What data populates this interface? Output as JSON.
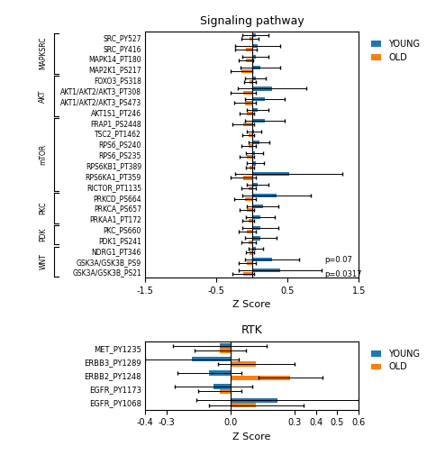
{
  "chart_data": [
    {
      "type": "bar",
      "orientation": "horizontal",
      "title": "Signaling pathway",
      "categories": [
        "SRC_PY527",
        "SRC_PY416",
        "MAPK14_PT180",
        "MAP2K1_PS217",
        "FOXO3_PS318",
        "AKT1/AKT2/AKT3_PT308",
        "AKT1/AKT2/AKT3_PS473",
        "AKT1S1_PT246",
        "FRAP1_PS2448",
        "TSC2_PT1462",
        "RPS6_PS240",
        "RPS6_PS235",
        "RPS6KB1_PT389",
        "RPS6KA1_PT359",
        "RICTOR_PT1135",
        "PRKCD_PS664",
        "PRKCA_PS657",
        "PRKAA1_PT172",
        "PKC_PS660",
        "PDK1_PS241",
        "NDRG1_PT346",
        "GSK3A/GSK3B_PS9",
        "GSK3A/GSK3B_PS21"
      ],
      "series": [
        {
          "name": "YOUNG",
          "values": [
            0.05,
            0.08,
            0.05,
            0.12,
            0.05,
            0.28,
            0.18,
            0.08,
            0.18,
            0.03,
            0.1,
            0.04,
            0.05,
            0.52,
            0.08,
            0.35,
            0.15,
            0.12,
            0.12,
            0.12,
            0.05,
            0.28,
            0.4
          ],
          "errors": [
            0.18,
            0.32,
            0.18,
            0.28,
            0.15,
            0.48,
            0.28,
            0.15,
            0.28,
            0.1,
            0.15,
            0.12,
            0.12,
            0.75,
            0.15,
            0.48,
            0.22,
            0.2,
            0.25,
            0.22,
            0.1,
            0.38,
            0.58
          ]
        },
        {
          "name": "OLD",
          "values": [
            -0.03,
            -0.08,
            -0.08,
            -0.15,
            -0.03,
            -0.12,
            -0.1,
            -0.07,
            -0.12,
            -0.05,
            -0.05,
            -0.07,
            -0.03,
            -0.12,
            -0.05,
            -0.1,
            -0.07,
            -0.05,
            -0.07,
            -0.05,
            -0.03,
            -0.07,
            -0.12
          ],
          "errors": [
            0.12,
            0.15,
            0.1,
            0.15,
            0.08,
            0.18,
            0.15,
            0.1,
            0.15,
            0.08,
            0.1,
            0.1,
            0.06,
            0.18,
            0.1,
            0.15,
            0.1,
            0.08,
            0.12,
            0.1,
            0.06,
            0.12,
            0.15
          ]
        }
      ],
      "xlabel": "Z Score",
      "xlim": [
        -1.5,
        1.5
      ],
      "xticks": [
        -1.5,
        -0.5,
        0.5,
        1.5
      ],
      "legend": "right",
      "annotations": [
        {
          "text": "p=0.07",
          "category": "GSK3A/GSK3B_PS9",
          "series": "YOUNG"
        },
        {
          "text": "p=0.0317",
          "category": "GSK3A/GSK3B_PS21",
          "series": "OLD"
        }
      ],
      "groups": [
        {
          "name": "MAPKSRC",
          "first": "SRC_PY527",
          "last": "MAP2K1_PS217"
        },
        {
          "name": "AKT",
          "first": "FOXO3_PS318",
          "last": "AKT1S1_PT246"
        },
        {
          "name": "mTOR",
          "first": "FRAP1_PS2448",
          "last": "RICTOR_PT1135"
        },
        {
          "name": "PKC",
          "first": "PRKCD_PS664",
          "last": "PRKAA1_PT172"
        },
        {
          "name": "PDK",
          "first": "PKC_PS660",
          "last": "PDK1_PS241"
        },
        {
          "name": "WNT",
          "first": "NDRG1_PT346",
          "last": "GSK3A/GSK3B_PS21"
        }
      ]
    },
    {
      "type": "bar",
      "orientation": "horizontal",
      "title": "RTK",
      "categories": [
        "MET_PY1235",
        "ERBB3_PY1289",
        "ERBB2_PY1248",
        "EGFR_PY1173",
        "EGFR_PY1068"
      ],
      "series": [
        {
          "name": "YOUNG",
          "values": [
            -0.05,
            -0.18,
            -0.1,
            -0.08,
            0.22
          ],
          "errors": [
            0.22,
            0.22,
            0.15,
            0.18,
            0.38
          ]
        },
        {
          "name": "OLD",
          "values": [
            -0.05,
            0.12,
            0.28,
            -0.05,
            0.12
          ],
          "errors": [
            0.12,
            0.18,
            0.15,
            0.1,
            0.22
          ]
        }
      ],
      "xlabel": "Z Score",
      "xlim": [
        -0.4,
        0.6
      ],
      "xticks": [
        -0.4,
        -0.3,
        0.0,
        0.3,
        0.4,
        0.5,
        0.6
      ],
      "legend": "right"
    }
  ]
}
